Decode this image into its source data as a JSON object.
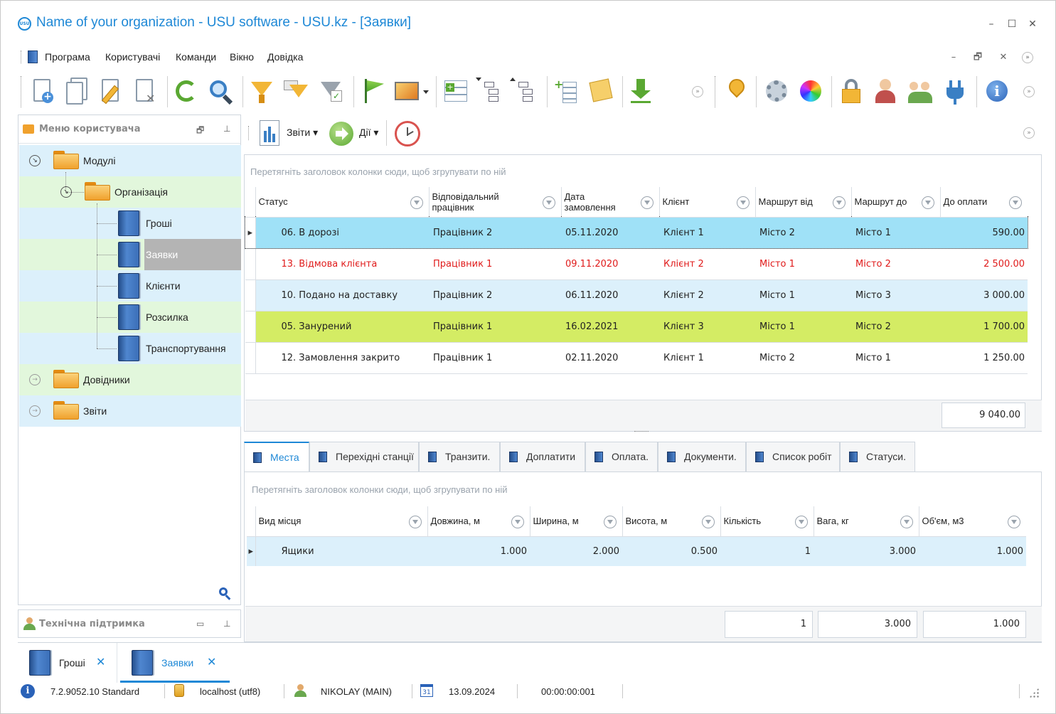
{
  "window": {
    "logo_text": "USU",
    "title": "Name of your organization - USU software - USU.kz - [Заявки]",
    "controls": {
      "minimize": "–",
      "maximize": "☐",
      "close": "✕"
    }
  },
  "menubar": {
    "items": [
      "Програма",
      "Користувачі",
      "Команди",
      "Вікно",
      "Довідка"
    ],
    "mdi_controls": {
      "minimize": "–",
      "restore": "🗗",
      "close": "✕"
    }
  },
  "left_panel": {
    "title": "Меню користувача",
    "tree": {
      "modules": "Модулі",
      "organization": "Організація",
      "items": [
        "Гроші",
        "Заявки",
        "Клієнти",
        "Розсилка",
        "Транспортування"
      ],
      "selected": "Заявки",
      "references": "Довідники",
      "reports": "Звіти"
    }
  },
  "support_panel": {
    "title": "Технічна підтримка"
  },
  "content_toolbar": {
    "reports": "Звіти",
    "actions": "Дії"
  },
  "main_grid": {
    "group_hint": "Перетягніть заголовок колонки сюди, щоб згрупувати по ній",
    "columns": [
      "Статус",
      "Відповідальний працівник",
      "Дата замовлення",
      "Клієнт",
      "Маршрут від",
      "Маршрут до",
      "До оплати"
    ],
    "rows": [
      {
        "status": "06. В дорозі",
        "employee": "Працівник 2",
        "date": "05.11.2020",
        "client": "Клієнт 1",
        "from": "Місто 2",
        "to": "Місто 1",
        "amount": "590.00",
        "bg": "#9fe1f7",
        "color": "#222222",
        "selected": true
      },
      {
        "status": "13. Відмова клієнта",
        "employee": "Працівник 1",
        "date": "09.11.2020",
        "client": "Клієнт 2",
        "from": "Місто 1",
        "to": "Місто 2",
        "amount": "2 500.00",
        "bg": "#ffffff",
        "color": "#e01b1b",
        "selected": false
      },
      {
        "status": "10. Подано на доставку",
        "employee": "Працівник 2",
        "date": "06.11.2020",
        "client": "Клієнт 2",
        "from": "Місто 1",
        "to": "Місто 3",
        "amount": "3 000.00",
        "bg": "#dcf0fb",
        "color": "#222222",
        "selected": false
      },
      {
        "status": "05. Занурений",
        "employee": "Працівник 1",
        "date": "16.02.2021",
        "client": "Клієнт 3",
        "from": "Місто 1",
        "to": "Місто 2",
        "amount": "1 700.00",
        "bg": "#d4ec64",
        "color": "#222222",
        "selected": false
      },
      {
        "status": "12. Замовлення закрито",
        "employee": "Працівник 1",
        "date": "02.11.2020",
        "client": "Клієнт 1",
        "from": "Місто 2",
        "to": "Місто 1",
        "amount": "1 250.00",
        "bg": "#ffffff",
        "color": "#222222",
        "selected": false
      }
    ],
    "total": "9 040.00"
  },
  "tabs": [
    "Места",
    "Перехідні станції",
    "Транзити.",
    "Доплатити",
    "Оплата.",
    "Документи.",
    "Список робіт",
    "Статуси."
  ],
  "active_tab": "Места",
  "sub_grid": {
    "group_hint": "Перетягніть заголовок колонки сюди, щоб згрупувати по ній",
    "columns": [
      "Вид місця",
      "Довжина, м",
      "Ширина, м",
      "Висота, м",
      "Кількість",
      "Вага, кг",
      "Об'єм, м3"
    ],
    "rows": [
      {
        "type": "Ящики",
        "length": "1.000",
        "width": "2.000",
        "height": "0.500",
        "qty": "1",
        "weight": "3.000",
        "volume": "1.000"
      }
    ],
    "totals": {
      "qty": "1",
      "weight": "3.000",
      "volume": "1.000"
    }
  },
  "doc_tabs": [
    {
      "label": "Гроші",
      "close": "✕"
    },
    {
      "label": "Заявки",
      "close": "✕"
    }
  ],
  "statusbar": {
    "version": "7.2.9052.10 Standard",
    "db": "localhost (utf8)",
    "user": "NIKOLAY (MAIN)",
    "calendar_day": "31",
    "date": "13.09.2024",
    "timer": "00:00:00:001"
  },
  "colors": {
    "accent": "#1e88d6",
    "selected_tree": "#b4b4b4",
    "tree_row_a": "#dcf0fb",
    "tree_row_b": "#e2f7dc"
  }
}
